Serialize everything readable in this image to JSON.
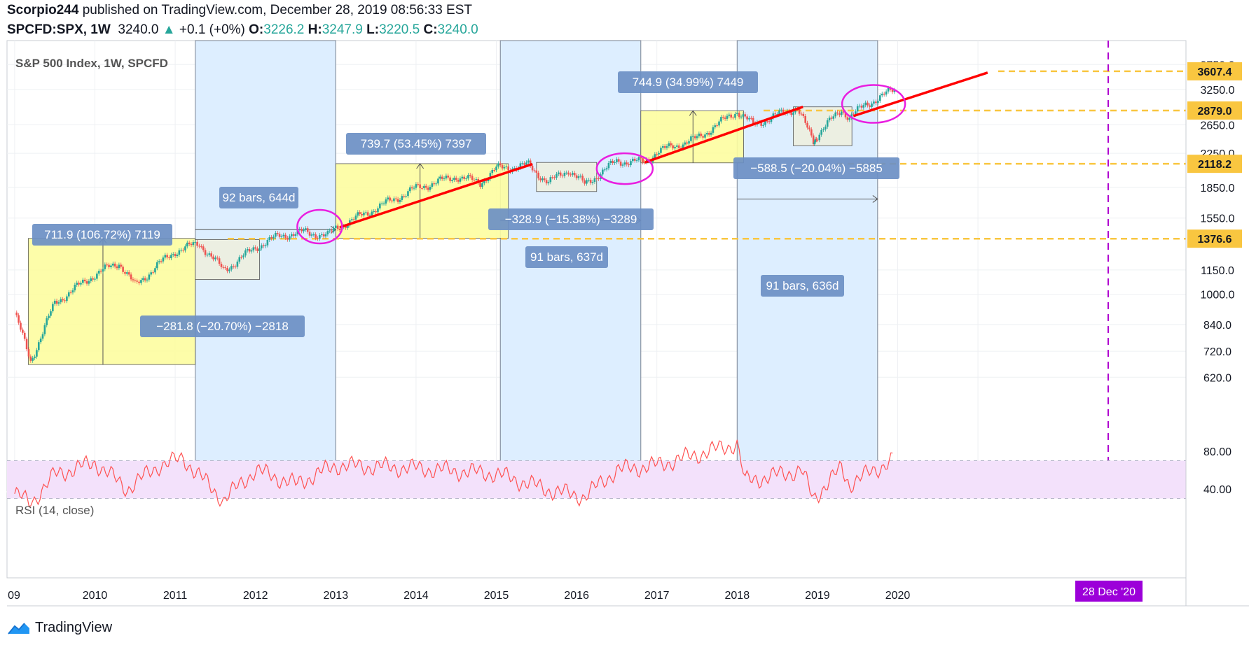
{
  "header": {
    "author": "Scorpio244",
    "published_text": "published on TradingView.com, December 28, 2019 08:56:33 EST",
    "symbol": "SPCFD:SPX, 1W",
    "last": "3240.0",
    "change": "+0.1 (+0%)",
    "o_label": "O:",
    "o": "3226.2",
    "h_label": "H:",
    "h": "3247.9",
    "l_label": "L:",
    "l": "3220.5",
    "c_label": "C:",
    "c": "3240.0"
  },
  "colors": {
    "up": "#26a69a",
    "down": "#ef5350",
    "trend": "#ff0000",
    "ellipse": "#e91ee0",
    "hline": "#f9c640",
    "vline": "#9c27b0",
    "yellow_box": "#fdfda0",
    "blue_band": "#ddeeff",
    "gray_box": "#eeeedd",
    "label_bg": "#6b8fc4",
    "rsi": "#ff5252",
    "rsi_band": "#f3e1fb"
  },
  "chart_data": [
    {
      "type": "line",
      "title": "S&P 500 Index, 1W, SPCFD",
      "y_scale": "log",
      "ylim": [
        570,
        3800
      ],
      "x_ticks": [
        "09",
        "2010",
        "2011",
        "2012",
        "2013",
        "2014",
        "2015",
        "2016",
        "2017",
        "2018",
        "2019",
        "2020"
      ],
      "y_ticks": [
        "3750.0",
        "3250.0",
        "2650.0",
        "2250.0",
        "1850.0",
        "1550.0",
        "1150.0",
        "1000.0",
        "840.0",
        "720.0",
        "620.0"
      ],
      "price_tags": [
        "3607.4",
        "2879.0",
        "2118.2",
        "1376.6"
      ],
      "date_tag": "28 Dec '20",
      "series": [
        {
          "x": [
            2009.0,
            2009.2,
            2009.5,
            2009.8,
            2010.0,
            2010.3,
            2010.5,
            2010.8,
            2011.0,
            2011.3,
            2011.6,
            2011.75,
            2012.0,
            2012.3,
            2012.6,
            2012.9,
            2013.0,
            2013.5,
            2014.0,
            2014.5,
            2014.8,
            2015.0,
            2015.4,
            2015.65,
            2015.9,
            2016.1,
            2016.5,
            2016.85,
            2017.0,
            2017.5,
            2018.0,
            2018.2,
            2018.5,
            2018.75,
            2018.95,
            2019.0,
            2019.3,
            2019.4,
            2019.6,
            2019.96
          ],
          "values": [
            900,
            680,
            950,
            1050,
            1120,
            1200,
            1050,
            1190,
            1280,
            1340,
            1150,
            1200,
            1310,
            1400,
            1430,
            1400,
            1460,
            1640,
            1840,
            1970,
            1900,
            2060,
            2100,
            1900,
            2050,
            1880,
            2150,
            2140,
            2270,
            2450,
            2870,
            2650,
            2800,
            2930,
            2400,
            2500,
            2900,
            2760,
            2980,
            3240
          ]
        }
      ],
      "annotations": [
        {
          "label": "711.9 (106.72%) 7119",
          "from": 667,
          "to": 1379
        },
        {
          "label": "−281.8 (−20.70%) −2818",
          "from": 1370,
          "to": 1088
        },
        {
          "label": "92 bars, 644d"
        },
        {
          "label": "739.7 (53.45%) 7397",
          "from": 1380,
          "to": 2120
        },
        {
          "label": "−328.9 (−15.38%) −3289",
          "from": 2135,
          "to": 1806
        },
        {
          "label": "91 bars, 637d"
        },
        {
          "label": "744.9 (34.99%) 7449",
          "from": 2130,
          "to": 2875
        },
        {
          "label": "−588.5 (−20.04%) −5885",
          "from": 2940,
          "to": 2350
        },
        {
          "label": "91 bars, 636d"
        }
      ]
    },
    {
      "type": "line",
      "title": "RSI (14, close)",
      "ylim": [
        20,
        95
      ],
      "y_ticks": [
        "80.00",
        "40.00"
      ],
      "band": [
        30,
        70
      ],
      "series": [
        {
          "x": [
            2009.0,
            2009.2,
            2009.5,
            2010.0,
            2010.4,
            2010.8,
            2011.1,
            2011.6,
            2012.0,
            2012.5,
            2013.0,
            2014.0,
            2015.0,
            2015.7,
            2016.1,
            2016.5,
            2017.0,
            2018.0,
            2018.1,
            2018.8,
            2018.95,
            2019.3,
            2019.4,
            2019.96
          ],
          "values": [
            35,
            25,
            55,
            68,
            40,
            65,
            72,
            28,
            60,
            45,
            65,
            62,
            56,
            38,
            32,
            60,
            65,
            88,
            48,
            60,
            30,
            62,
            45,
            72
          ]
        }
      ]
    }
  ],
  "watermark": "TradingView"
}
